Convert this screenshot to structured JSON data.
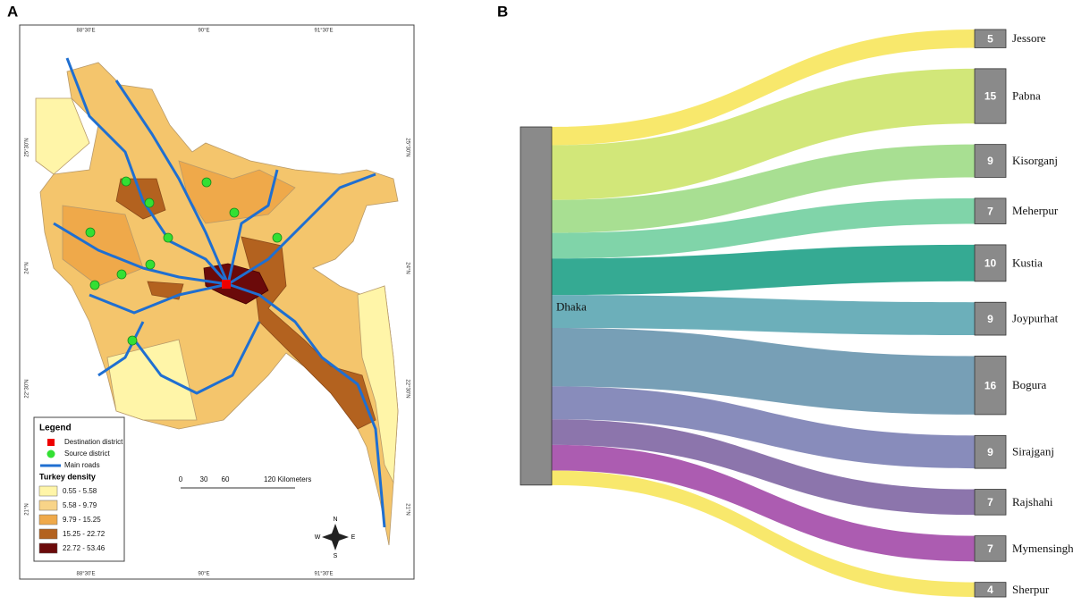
{
  "panels": {
    "a": "A",
    "b": "B"
  },
  "map": {
    "coordinates": {
      "longitude": [
        "88°30'E",
        "90°E",
        "91°30'E"
      ],
      "latitude": [
        "25°30'N",
        "24°N",
        "22°30'N",
        "21°N"
      ]
    },
    "legend": {
      "title": "Legend",
      "items": [
        "Destination district",
        "Source district",
        "Main roads"
      ],
      "density_title": "Turkey density",
      "density_classes": [
        "0.55 - 5.58",
        "5.58 - 9.79",
        "9.79 - 15.25",
        "15.25 - 22.72",
        "22.72 - 53.46"
      ],
      "density_colors": [
        "#fff5a8",
        "#f8d488",
        "#efa94a",
        "#b3621f",
        "#6b0a0a"
      ]
    },
    "scale": [
      "0",
      "30",
      "60",
      "120 Kilometers"
    ],
    "compass": [
      "N",
      "S",
      "E",
      "W"
    ]
  },
  "chart_data": {
    "type": "sankey",
    "source": "Dhaka",
    "targets": [
      "Jessore",
      "Pabna",
      "Kisorganj",
      "Meherpur",
      "Kustia",
      "Joypurhat",
      "Bogura",
      "Sirajganj",
      "Rajshahi",
      "Mymensingh",
      "Sherpur"
    ],
    "values": [
      5,
      15,
      9,
      7,
      10,
      9,
      16,
      9,
      7,
      7,
      4
    ],
    "colors": [
      "#f7e55c",
      "#cde46a",
      "#9fdb86",
      "#72cfa0",
      "#1fa187",
      "#5ca6b2",
      "#6895ae",
      "#7b80b4",
      "#7f66a3",
      "#a34aa8",
      "#f7e55c"
    ],
    "node_color": "#8a8a8a"
  }
}
